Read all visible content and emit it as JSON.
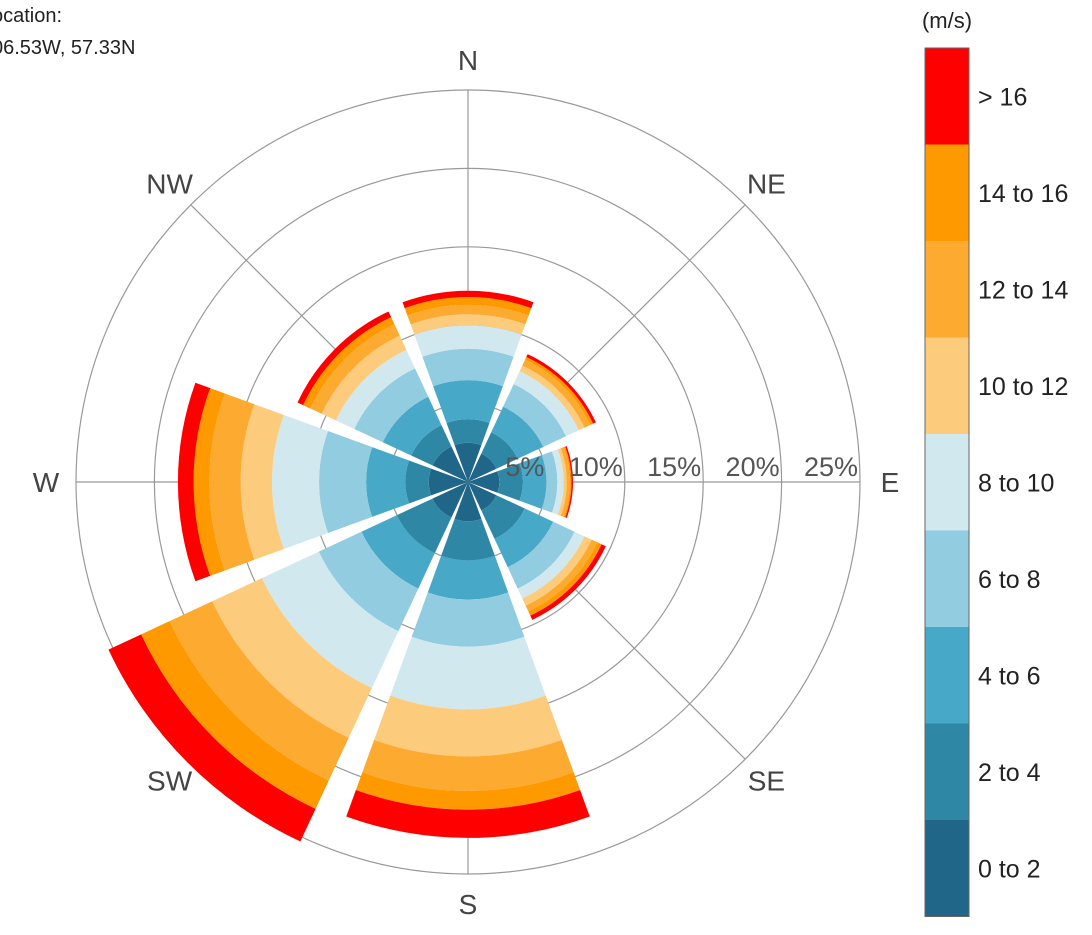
{
  "location": {
    "label": "ocation:",
    "coords": "06.53W, 57.33N"
  },
  "colors": {
    "bins": [
      "#206688",
      "#2f87a6",
      "#47a9c7",
      "#92cce0",
      "#d2e8ef",
      "#fdcb7c",
      "#fdaa30",
      "#ff9900",
      "#ff0000"
    ],
    "grid": "#999999",
    "background": "#ffffff"
  },
  "chart_data": {
    "type": "wind-rose",
    "directions": [
      "N",
      "NE",
      "E",
      "SE",
      "S",
      "SW",
      "W",
      "NW"
    ],
    "radial_ticks": [
      5,
      10,
      15,
      20,
      25
    ],
    "radial_tick_labels": [
      "5%",
      "10%",
      "15%",
      "20%",
      "25%"
    ],
    "rmax": 25,
    "unit_label": "(m/s)",
    "legend_title": "(m/s)",
    "speed_bins": [
      "0 to 2",
      "2 to 4",
      "4 to 6",
      "6 to 8",
      "8 to 10",
      "10 to 12",
      "12 to 14",
      "14 to 16",
      "> 16"
    ],
    "cumulative_frequency": [
      {
        "direction": "N",
        "values": [
          2.5,
          4.0,
          6.5,
          8.5,
          10.0,
          10.7,
          11.3,
          11.8,
          12.2
        ]
      },
      {
        "direction": "NE",
        "values": [
          2.0,
          3.5,
          5.3,
          6.9,
          7.8,
          8.2,
          8.6,
          8.8,
          9.0
        ]
      },
      {
        "direction": "E",
        "values": [
          2.0,
          3.5,
          5.0,
          5.7,
          6.1,
          6.3,
          6.5,
          6.6,
          6.7
        ]
      },
      {
        "direction": "SE",
        "values": [
          2.0,
          4.0,
          6.0,
          7.5,
          8.2,
          8.7,
          9.1,
          9.4,
          9.7
        ]
      },
      {
        "direction": "S",
        "values": [
          2.5,
          5.0,
          7.5,
          10.5,
          14.5,
          17.5,
          19.7,
          20.9,
          22.7
        ]
      },
      {
        "direction": "SW",
        "values": [
          2.5,
          5.0,
          7.5,
          10.5,
          14.5,
          18.0,
          21.0,
          23.0,
          25.3
        ]
      },
      {
        "direction": "W",
        "values": [
          2.5,
          4.0,
          6.5,
          9.5,
          12.5,
          14.5,
          16.5,
          17.5,
          18.5
        ]
      },
      {
        "direction": "NW",
        "values": [
          2.5,
          4.0,
          6.0,
          8.0,
          9.3,
          10.3,
          11.1,
          11.6,
          12.0
        ]
      }
    ]
  }
}
